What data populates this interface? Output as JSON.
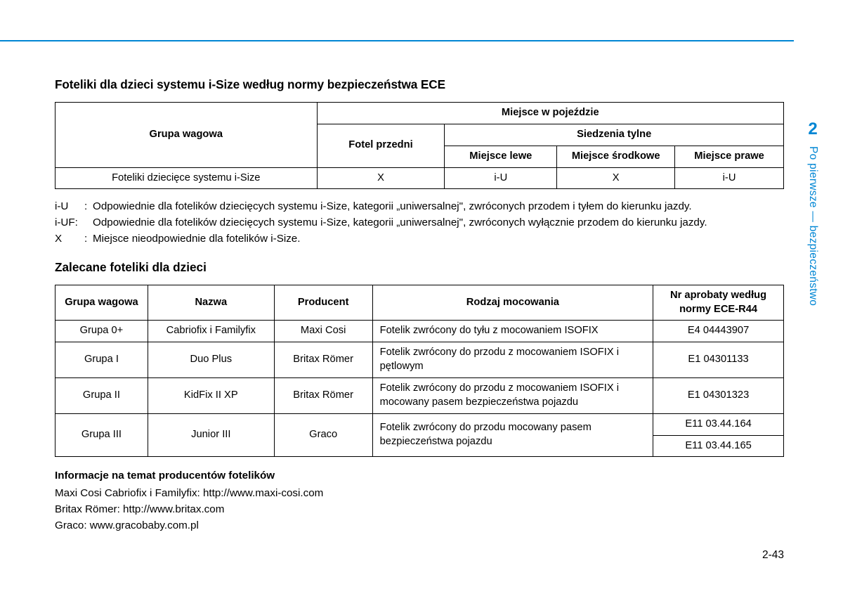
{
  "accent_color": "#0086d4",
  "section1": {
    "title": "Foteliki dla dzieci systemu i-Size według normy bezpieczeństwa ECE",
    "header": {
      "group": "Grupa wagowa",
      "vehicle_place": "Miejsce w pojeździe",
      "front_seat": "Fotel przedni",
      "rear_seats": "Siedzenia tylne",
      "left": "Miejsce lewe",
      "center": "Miejsce środkowe",
      "right": "Miejsce prawe"
    },
    "row": {
      "label": "Foteliki dziecięce systemu i-Size",
      "front": "X",
      "left": "i-U",
      "center": "X",
      "right": "i-U"
    }
  },
  "legend": {
    "iU_key": "i-U",
    "iU_text": "Odpowiednie dla fotelików dziecięcych systemu i-Size, kategorii „uniwersalnej\", zwróconych przodem i tyłem do kierunku jazdy.",
    "iUF_key": "i-UF:",
    "iUF_text": "Odpowiednie dla fotelików dziecięcych systemu i-Size, kategorii „uniwersalnej\", zwróconych wyłącznie przodem do kierunku jazdy.",
    "X_key": "X",
    "X_text": "Miejsce nieodpowiednie dla fotelików i-Size."
  },
  "section2": {
    "title": "Zalecane foteliki dla dzieci",
    "header": {
      "group": "Grupa wagowa",
      "name": "Nazwa",
      "producer": "Producent",
      "mount": "Rodzaj mocowania",
      "approval": "Nr aprobaty według normy ECE-R44"
    },
    "rows": [
      {
        "group": "Grupa 0+",
        "name": "Cabriofix i Familyfix",
        "producer": "Maxi Cosi",
        "mount": "Fotelik zwrócony do tyłu z mocowaniem ISOFIX",
        "approval": "E4 04443907"
      },
      {
        "group": "Grupa I",
        "name": "Duo Plus",
        "producer": "Britax Römer",
        "mount": "Fotelik zwrócony do przodu z mocowaniem ISOFIX i pętlowym",
        "approval": "E1 04301133"
      },
      {
        "group": "Grupa II",
        "name": "KidFix II XP",
        "producer": "Britax Römer",
        "mount": "Fotelik zwrócony do przodu z mocowaniem ISOFIX i mocowany pasem bezpieczeństwa pojazdu",
        "approval": "E1 04301323"
      },
      {
        "group": "Grupa III",
        "name": "Junior III",
        "producer": "Graco",
        "mount": "Fotelik zwrócony do przodu mocowany pasem bezpieczeństwa pojazdu",
        "approval1": "E11 03.44.164",
        "approval2": "E11 03.44.165"
      }
    ]
  },
  "manufacturers": {
    "title": "Informacje na temat producentów fotelików",
    "lines": [
      "Maxi Cosi Cabriofix i Familyfix: http://www.maxi-cosi.com",
      "Britax Römer: http://www.britax.com",
      "Graco: www.gracobaby.com.pl"
    ]
  },
  "sidetab": {
    "number": "2",
    "text": "Po pierwsze — bezpieczeństwo"
  },
  "page_number": "2-43"
}
